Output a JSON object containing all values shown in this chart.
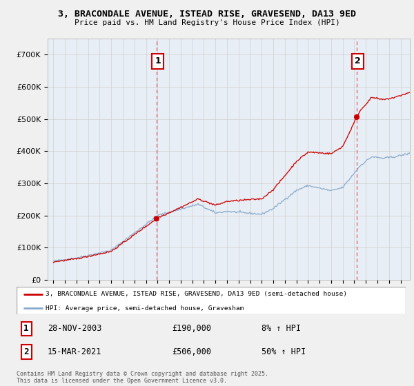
{
  "title_line1": "3, BRACONDALE AVENUE, ISTEAD RISE, GRAVESEND, DA13 9ED",
  "title_line2": "Price paid vs. HM Land Registry's House Price Index (HPI)",
  "legend_label1": "3, BRACONDALE AVENUE, ISTEAD RISE, GRAVESEND, DA13 9ED (semi-detached house)",
  "legend_label2": "HPI: Average price, semi-detached house, Gravesham",
  "footer": "Contains HM Land Registry data © Crown copyright and database right 2025.\nThis data is licensed under the Open Government Licence v3.0.",
  "annotation1_date": "28-NOV-2003",
  "annotation1_price": "£190,000",
  "annotation1_hpi": "8% ↑ HPI",
  "annotation2_date": "15-MAR-2021",
  "annotation2_price": "£506,000",
  "annotation2_hpi": "50% ↑ HPI",
  "sale1_x": 2003.91,
  "sale1_y": 190000,
  "sale2_x": 2021.21,
  "sale2_y": 506000,
  "vline1_x": 2003.91,
  "vline2_x": 2021.21,
  "ylim_min": 0,
  "ylim_max": 750000,
  "xlim_min": 1994.5,
  "xlim_max": 2025.8,
  "yticks": [
    0,
    100000,
    200000,
    300000,
    400000,
    500000,
    600000,
    700000
  ],
  "xticks": [
    1995,
    1996,
    1997,
    1998,
    1999,
    2000,
    2001,
    2002,
    2003,
    2004,
    2005,
    2006,
    2007,
    2008,
    2009,
    2010,
    2011,
    2012,
    2013,
    2014,
    2015,
    2016,
    2017,
    2018,
    2019,
    2020,
    2021,
    2022,
    2023,
    2024,
    2025
  ],
  "color_sale": "#cc0000",
  "color_hpi": "#88aacc",
  "background_color": "#f0f0f0",
  "plot_bg": "#e8eef5"
}
